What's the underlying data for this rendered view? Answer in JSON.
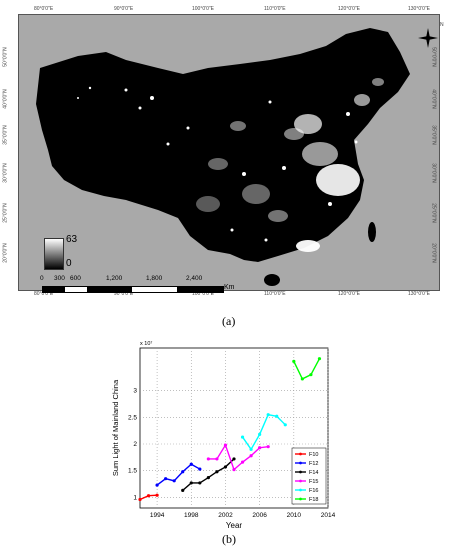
{
  "map": {
    "top_lon_ticks": [
      "80°0'0\"E",
      "90°0'0\"E",
      "100°0'0\"E",
      "110°0'0\"E",
      "120°0'0\"E",
      "130°0'0\"E"
    ],
    "bottom_lon_ticks": [
      "80°0'0\"E",
      "90°0'0\"E",
      "100°0'0\"E",
      "110°0'0\"E",
      "120°0'0\"E",
      "130°0'0\"E"
    ],
    "left_lat_ticks": [
      "50°0'0\"N",
      "40°0'0\"N",
      "35°0'0\"N",
      "30°0'0\"N",
      "25°0'0\"N",
      "20°0'0\"N"
    ],
    "right_lat_ticks": [
      "50°0'0\"N",
      "40°0'0\"N",
      "35°0'0\"N",
      "30°0'0\"N",
      "25°0'0\"N",
      "20°0'0\"N"
    ],
    "legend_max": "63",
    "legend_min": "0",
    "scale_labels": [
      "0",
      "300",
      "600",
      "1,200",
      "1,800",
      "2,400"
    ],
    "scale_unit": "Km",
    "north_label": "N",
    "colors": {
      "background": "#a9a9a9",
      "land": "#000000",
      "lights": "#ffffff"
    }
  },
  "captions": {
    "a": "(a)",
    "b": "(b)"
  },
  "chart_data": {
    "type": "line",
    "ylabel": "Sum Light of Mainland China",
    "xlabel": "Year",
    "y_exponent": "x 10⁷",
    "x_ticks": [
      "1994",
      "1998",
      "2002",
      "2006",
      "2010",
      "2014"
    ],
    "y_ticks": [
      "1",
      "1.5",
      "2",
      "2.5",
      "3"
    ],
    "xlim": [
      1992,
      2014
    ],
    "ylim": [
      0.8,
      3.8
    ],
    "grid": true,
    "legend_position": "bottom-right",
    "series": [
      {
        "name": "F10",
        "color": "#ff0000",
        "x": [
          1992,
          1993,
          1994
        ],
        "y": [
          0.96,
          1.03,
          1.04
        ]
      },
      {
        "name": "F12",
        "color": "#0000ff",
        "x": [
          1994,
          1995,
          1996,
          1997,
          1998,
          1999
        ],
        "y": [
          1.23,
          1.35,
          1.31,
          1.48,
          1.62,
          1.53
        ]
      },
      {
        "name": "F14",
        "color": "#000000",
        "x": [
          1997,
          1998,
          1999,
          2000,
          2001,
          2002,
          2003
        ],
        "y": [
          1.13,
          1.27,
          1.27,
          1.37,
          1.48,
          1.57,
          1.72
        ]
      },
      {
        "name": "F15",
        "color": "#ff00ff",
        "x": [
          2000,
          2001,
          2002,
          2003,
          2004,
          2005,
          2006,
          2007
        ],
        "y": [
          1.72,
          1.72,
          1.98,
          1.52,
          1.66,
          1.78,
          1.93,
          1.95
        ]
      },
      {
        "name": "F16",
        "color": "#00ffff",
        "x": [
          2004,
          2005,
          2006,
          2007,
          2008,
          2009
        ],
        "y": [
          2.13,
          1.9,
          2.18,
          2.55,
          2.52,
          2.36
        ]
      },
      {
        "name": "F18",
        "color": "#00ff00",
        "x": [
          2010,
          2011,
          2012,
          2013
        ],
        "y": [
          3.55,
          3.22,
          3.3,
          3.6
        ]
      }
    ]
  }
}
